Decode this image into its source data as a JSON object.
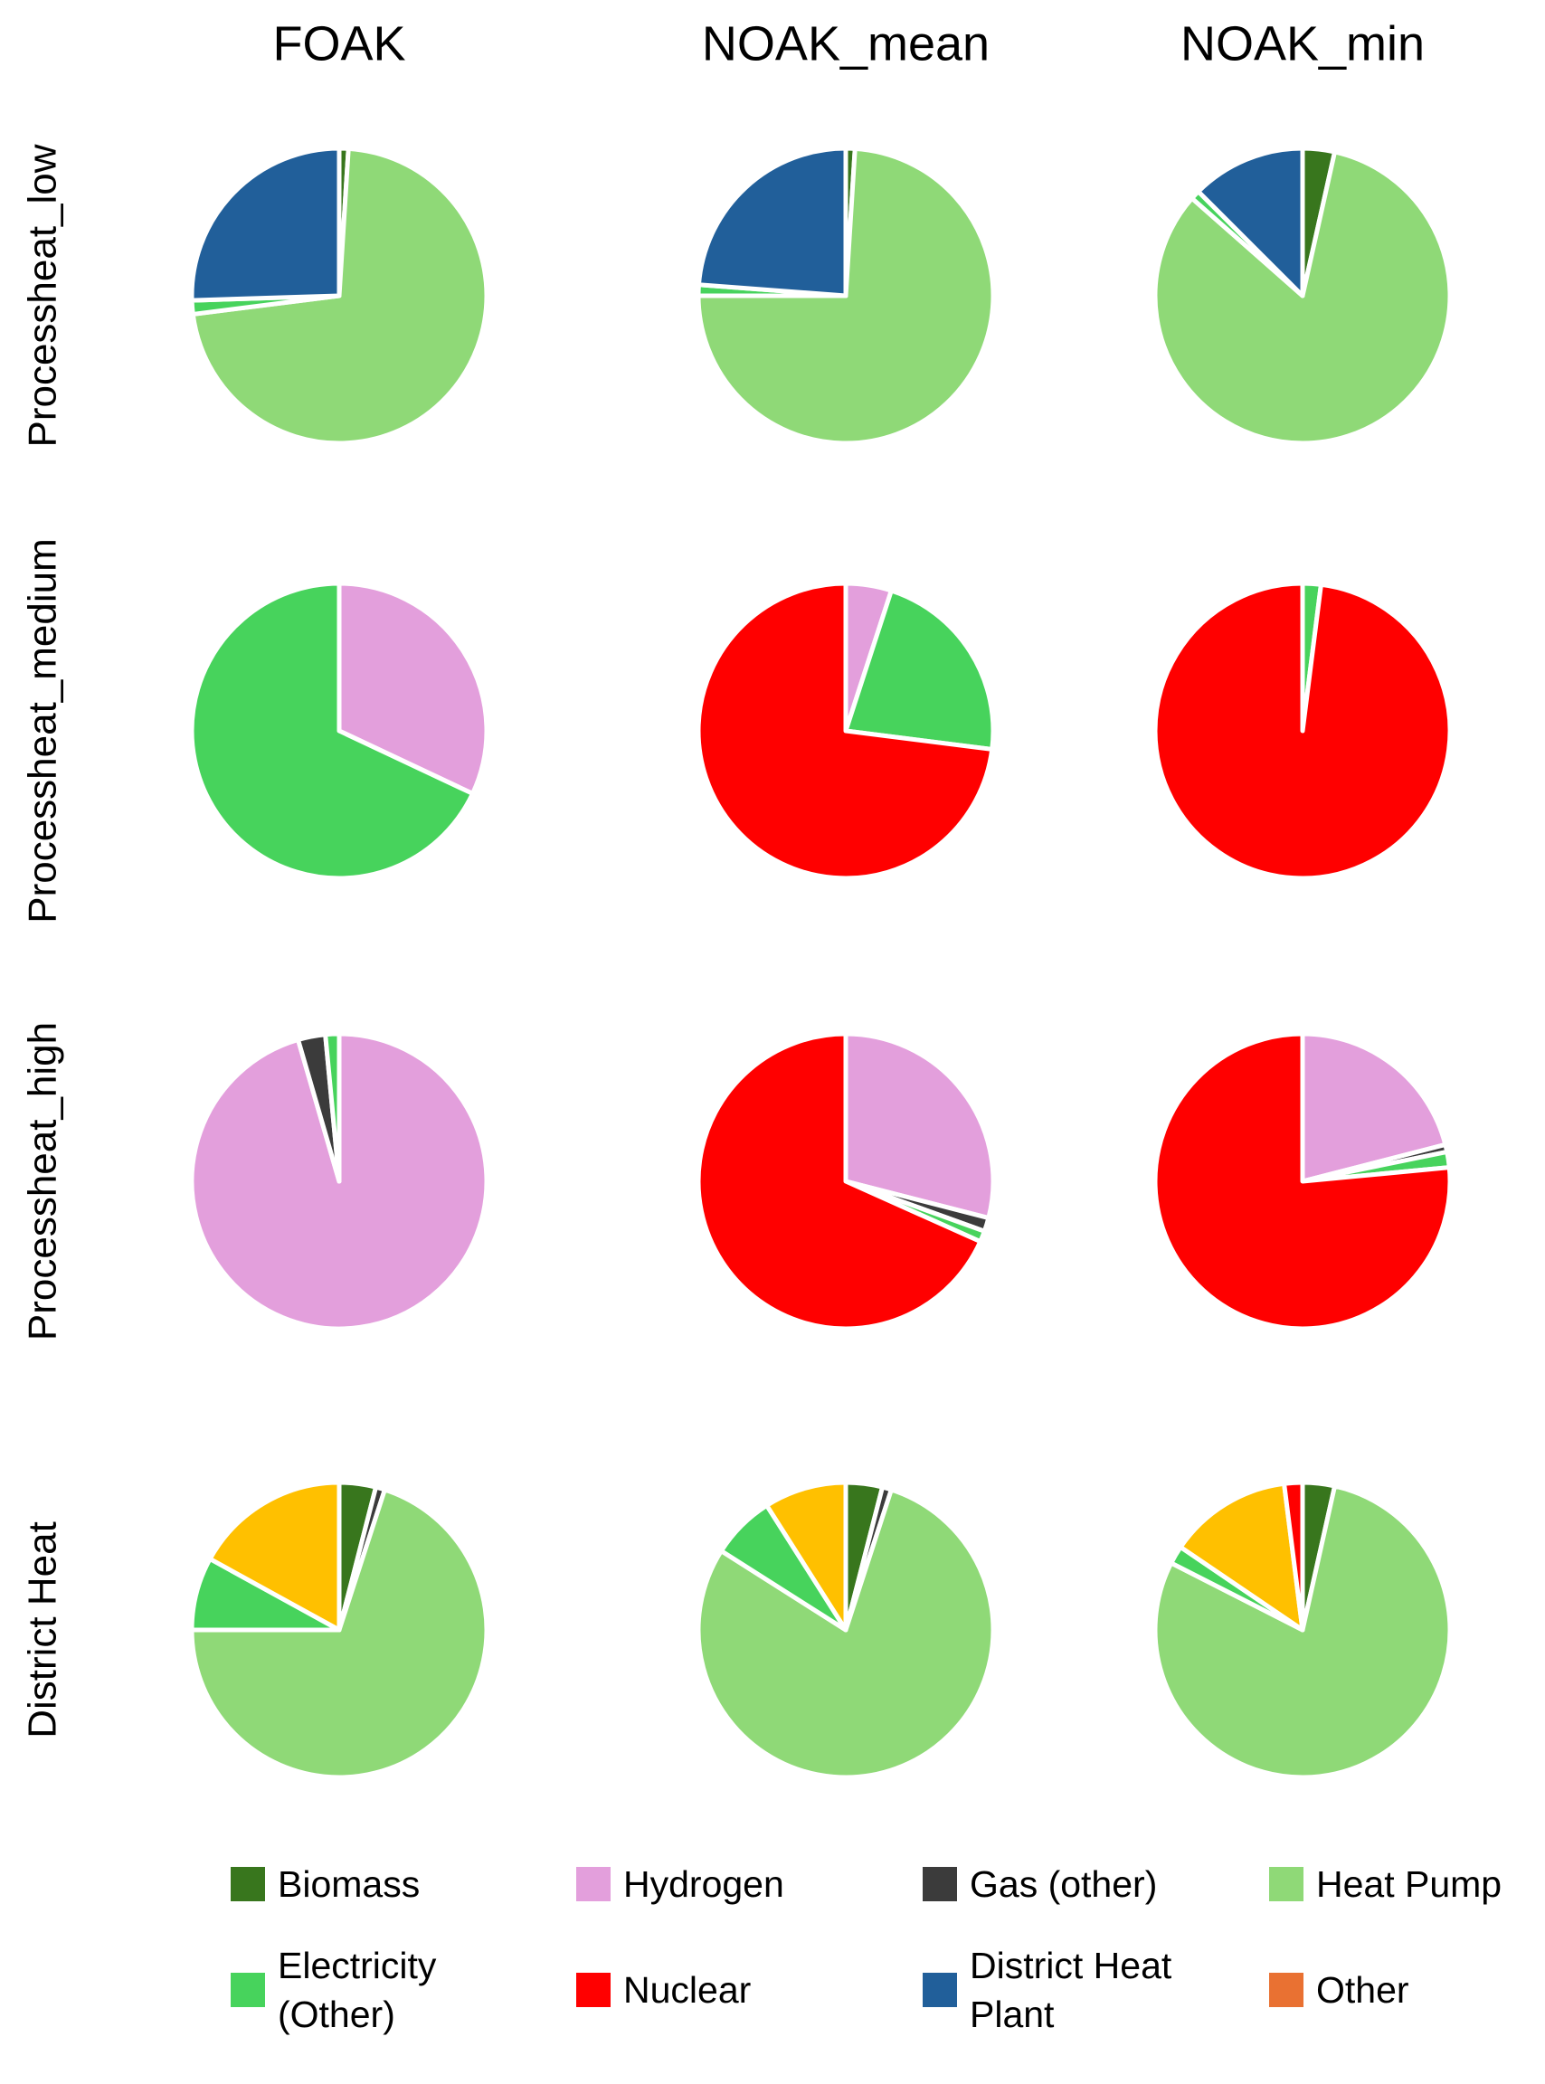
{
  "chart_data": {
    "type": "pie",
    "columns": [
      "FOAK",
      "NOAK_mean",
      "NOAK_min"
    ],
    "rows": [
      "Processheat_low",
      "Processheat_medium",
      "Processheat_high",
      "District Heat"
    ],
    "series": [
      {
        "name": "Biomass",
        "color": "#38761d",
        "values": [
          1,
          1,
          3.5,
          0,
          0,
          0,
          0,
          0,
          0,
          4,
          4,
          3.5
        ]
      },
      {
        "name": "Hydrogen",
        "color": "#e39fdc",
        "values": [
          0,
          0,
          0,
          32,
          5,
          0,
          95.5,
          29,
          21,
          0,
          0,
          0
        ]
      },
      {
        "name": "Gas (other)",
        "color": "#3b3b3b",
        "values": [
          0,
          0,
          0,
          0,
          0,
          0,
          3,
          1.5,
          0.8,
          1,
          1,
          0
        ]
      },
      {
        "name": "Heat Pump",
        "color": "#8fd977",
        "values": [
          72,
          74,
          83,
          0,
          0,
          0,
          0,
          0,
          0,
          70,
          79,
          79
        ]
      },
      {
        "name": "Electricity (Other)",
        "color": "#47d35c",
        "values": [
          1.5,
          1.2,
          1,
          68,
          22,
          2,
          1.5,
          1.2,
          1.7,
          8,
          7,
          2
        ]
      },
      {
        "name": "Nuclear",
        "color": "#ff0000",
        "values": [
          0,
          0,
          0,
          0,
          73,
          98,
          0,
          68.3,
          76.5,
          0,
          0,
          2
        ]
      },
      {
        "name": "District Heat Plant",
        "color": "#215f9a",
        "values": [
          25.5,
          23.8,
          12.5,
          0,
          0,
          0,
          0,
          0,
          0,
          0,
          0,
          0
        ]
      },
      {
        "name": "Other",
        "color": "#e97132",
        "values": [
          0,
          0,
          0,
          0,
          0,
          0,
          0,
          0,
          0,
          0,
          0,
          0
        ]
      },
      {
        "name": null,
        "color": "#ffc000",
        "values": [
          0,
          0,
          0,
          0,
          0,
          0,
          0,
          0,
          0,
          17,
          9,
          13.5
        ]
      }
    ]
  }
}
